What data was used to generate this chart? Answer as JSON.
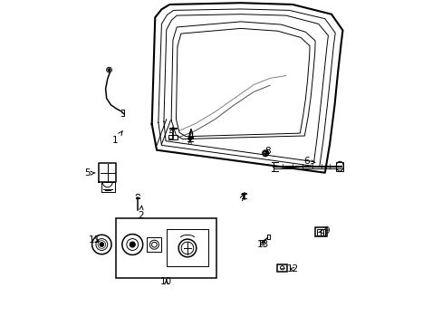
{
  "bg_color": "#ffffff",
  "line_color": "#000000",
  "label_color": "#000000",
  "fig_width": 4.89,
  "fig_height": 3.6,
  "dpi": 100
}
